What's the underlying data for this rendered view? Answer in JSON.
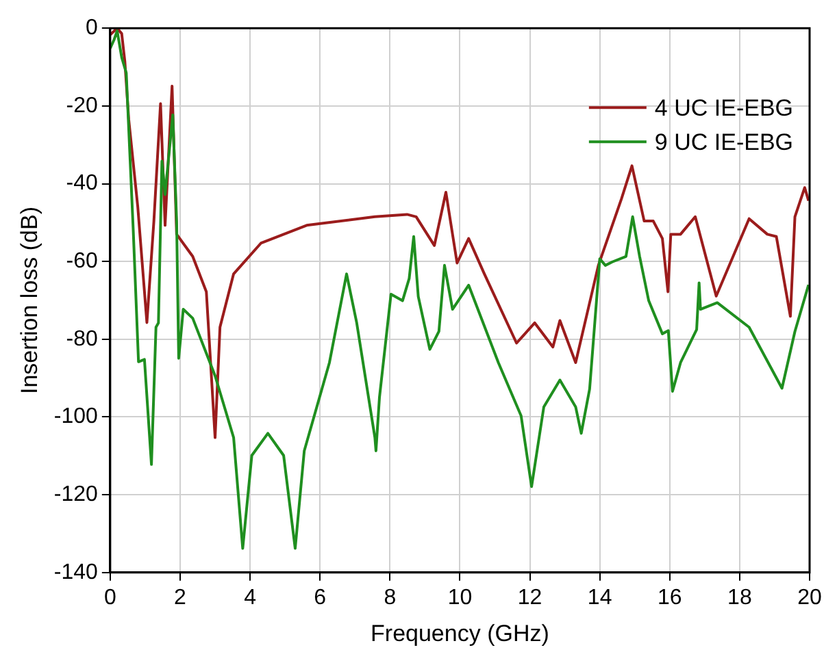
{
  "chart_data": {
    "type": "line",
    "xlabel": "Frequency (GHz)",
    "ylabel": "Insertion loss (dB)",
    "xlim": [
      0,
      20
    ],
    "xticks": [
      0,
      2,
      4,
      6,
      8,
      10,
      12,
      14,
      16,
      18,
      20
    ],
    "ylim": [
      -140,
      0
    ],
    "yticks": [
      -140,
      -120,
      -100,
      -80,
      -60,
      -40,
      -20,
      0
    ],
    "grid": true,
    "legend": "top right",
    "marker": "none",
    "line_style": "solid",
    "series": [
      {
        "name": "4 UC IE-EBG",
        "color": "#9b1c1c",
        "x": [
          0,
          0.2,
          0.33,
          0.42,
          0.53,
          0.79,
          1.05,
          1.25,
          1.44,
          1.57,
          1.77,
          1.9,
          2.36,
          2.75,
          3.0,
          3.14,
          3.53,
          4.31,
          5.62,
          7.57,
          8.49,
          8.75,
          9.27,
          9.6,
          9.92,
          10.25,
          10.7,
          11.62,
          12.14,
          12.66,
          12.86,
          13.31,
          13.96,
          14.62,
          14.92,
          15.27,
          15.53,
          15.79,
          15.95,
          16.03,
          16.31,
          16.73,
          17.33,
          18.27,
          18.79,
          19.05,
          19.45,
          19.58,
          19.86,
          19.97
        ],
        "values": [
          -1.7,
          0,
          -1.4,
          -8.6,
          -23.4,
          -46,
          -75.7,
          -49.6,
          -19.4,
          -50.7,
          -14.9,
          -53,
          -58.7,
          -67.8,
          -105.3,
          -76.9,
          -63.2,
          -55.3,
          -50.7,
          -48.5,
          -47.9,
          -48.5,
          -55.9,
          -42.2,
          -60.4,
          -54.1,
          -63.2,
          -81,
          -75.8,
          -82,
          -75.2,
          -86,
          -61,
          -43.9,
          -35.4,
          -49.6,
          -49.6,
          -54.1,
          -67.8,
          -53,
          -53,
          -48.5,
          -68.9,
          -49,
          -53,
          -53.6,
          -74.1,
          -48.5,
          -41,
          -44.4
        ]
      },
      {
        "name": "9 UC IE-EBG",
        "color": "#1f8f1f",
        "x": [
          0,
          0.11,
          0.2,
          0.33,
          0.46,
          0.66,
          0.81,
          0.98,
          1.18,
          1.31,
          1.38,
          1.48,
          1.57,
          1.79,
          1.9,
          1.96,
          2.09,
          2.36,
          3.0,
          3.53,
          3.79,
          4.05,
          4.51,
          4.96,
          5.29,
          5.55,
          6.27,
          6.76,
          7.05,
          7.57,
          7.6,
          7.7,
          8.03,
          8.36,
          8.55,
          8.68,
          8.81,
          9.14,
          9.4,
          9.56,
          9.79,
          10.25,
          11.1,
          11.75,
          12.05,
          12.4,
          12.86,
          13.31,
          13.47,
          13.71,
          14.0,
          14.16,
          14.36,
          14.75,
          14.94,
          15.14,
          15.4,
          15.79,
          15.96,
          16.08,
          16.31,
          16.77,
          16.84,
          16.88,
          17.36,
          18.27,
          19.21,
          19.58,
          19.97
        ],
        "values": [
          -5.2,
          -3,
          -0.7,
          -7.5,
          -11.5,
          -52,
          -85.8,
          -85.2,
          -112.2,
          -76.9,
          -75.8,
          -34.2,
          -42.8,
          -22.3,
          -49.6,
          -84.9,
          -72.3,
          -74.6,
          -89.4,
          -105.3,
          -133.8,
          -109.9,
          -104.2,
          -109.9,
          -133.8,
          -108.7,
          -86,
          -63.2,
          -75.8,
          -105.3,
          -108.7,
          -95,
          -68.4,
          -70.1,
          -64.4,
          -53.6,
          -69,
          -82.6,
          -78,
          -61,
          -72.3,
          -66.1,
          -86,
          -99.7,
          -117.9,
          -97.4,
          -90.5,
          -97.4,
          -104.2,
          -92.8,
          -59.3,
          -61,
          -60.1,
          -58.7,
          -48.5,
          -58.7,
          -70.1,
          -78.6,
          -77.8,
          -93.4,
          -86,
          -77.5,
          -65.5,
          -72.3,
          -70.6,
          -76.9,
          -92.6,
          -78,
          -66
        ]
      }
    ]
  }
}
